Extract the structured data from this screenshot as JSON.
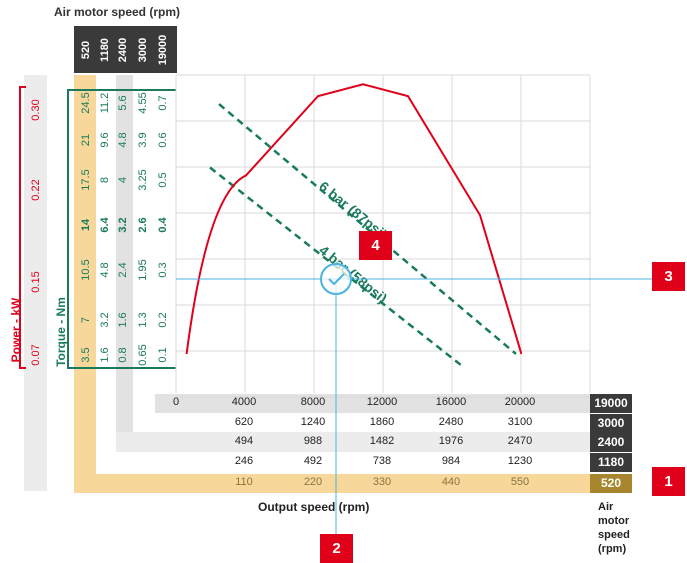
{
  "chart_data": {
    "type": "line",
    "title": "Air motor speed (rpm)",
    "xlabel": "Output speed (rpm)",
    "x_ticks": [
      "0",
      "4000",
      "8000",
      "12000",
      "16000",
      "20000"
    ],
    "xlim": [
      0,
      24000
    ],
    "power_axis": {
      "label": "Power - kW",
      "ticks": [
        "0.07",
        "0.15",
        "0.22",
        "0.30"
      ]
    },
    "torque_axis": {
      "label": "Torque - Nm",
      "columns": [
        {
          "motor_rpm": "520",
          "ticks": [
            "3.5",
            "7",
            "10.5",
            "14",
            "17.5",
            "21",
            "24.5"
          ]
        },
        {
          "motor_rpm": "1180",
          "ticks": [
            "1.6",
            "3.2",
            "4.8",
            "6.4",
            "8",
            "9.6",
            "11.2"
          ]
        },
        {
          "motor_rpm": "2400",
          "ticks": [
            "0.8",
            "1.6",
            "2.4",
            "3.2",
            "4",
            "4.8",
            "5.6"
          ]
        },
        {
          "motor_rpm": "3000",
          "ticks": [
            "0.65",
            "1.3",
            "1.95",
            "2.6",
            "3.25",
            "3.9",
            "4.55"
          ]
        },
        {
          "motor_rpm": "19000",
          "ticks": [
            "0.1",
            "0.2",
            "0.3",
            "0.4",
            "0.5",
            "0.6",
            "0.7"
          ]
        }
      ]
    },
    "speed_rows": [
      {
        "motor_rpm": "19000",
        "values": [
          "0",
          "4000",
          "8000",
          "12000",
          "16000",
          "20000"
        ]
      },
      {
        "motor_rpm": "3000",
        "values": [
          "620",
          "1240",
          "1860",
          "2480",
          "3100"
        ]
      },
      {
        "motor_rpm": "2400",
        "values": [
          "494",
          "988",
          "1482",
          "1976",
          "2470"
        ]
      },
      {
        "motor_rpm": "1180",
        "values": [
          "246",
          "492",
          "738",
          "984",
          "1230"
        ]
      },
      {
        "motor_rpm": "520",
        "values": [
          "110",
          "220",
          "330",
          "440",
          "550"
        ]
      }
    ],
    "series": [
      {
        "name": "6 bar (87psi)",
        "kind": "torque-line",
        "color": "#1a7a5e",
        "points": [
          [
            2500,
            0.72
          ],
          [
            19000,
            0.09
          ]
        ]
      },
      {
        "name": "4 bar (58psi)",
        "kind": "torque-line",
        "color": "#1a7a5e",
        "points": [
          [
            2000,
            0.56
          ],
          [
            16000,
            0.06
          ]
        ]
      },
      {
        "name": "",
        "kind": "power-curve",
        "color": "#e1001a",
        "points": [
          [
            700,
            0.09
          ],
          [
            4000,
            0.54
          ],
          [
            8000,
            0.74
          ],
          [
            10500,
            0.77
          ],
          [
            13000,
            0.74
          ],
          [
            17000,
            0.44
          ],
          [
            19300,
            0.09
          ]
        ]
      }
    ],
    "operating_point": {
      "x": 9300,
      "y": 0.3
    },
    "power_line": {
      "label": "6 bar (87psi)"
    },
    "grid": true
  },
  "labels": {
    "air_motor_speed_top": "Air motor speed (rpm)",
    "air_motor_speed_right": [
      "Air",
      "motor",
      "speed",
      "(rpm)"
    ],
    "output_speed": "Output speed (rpm)",
    "power": "Power - kW",
    "torque": "Torque - Nm",
    "line_6bar": "6 bar (87psi)",
    "line_4bar": "4 bar (58psi)"
  },
  "badges": {
    "b1": "1",
    "b2": "2",
    "b3": "3",
    "b4": "4"
  },
  "colors": {
    "red": "#e1001a",
    "green": "#1a7a5e",
    "dark": "#3a3a3a",
    "gold": "#a8862f"
  }
}
